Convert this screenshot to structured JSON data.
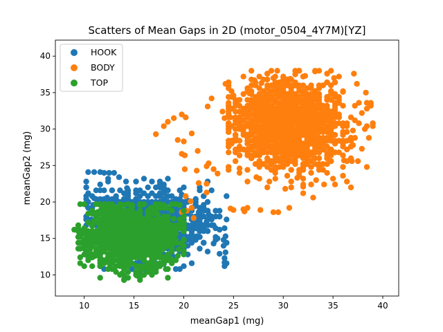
{
  "chart_data": {
    "type": "scatter",
    "title": "Scatters of Mean Gaps in 2D (motor_0504_4Y7M)[YZ]",
    "xlabel": "meanGap1 (mg)",
    "ylabel": "meanGap2 (mg)",
    "xlim": [
      7.1,
      41.6
    ],
    "ylim": [
      7.1,
      42.2
    ],
    "xticks": [
      10,
      15,
      20,
      25,
      30,
      35,
      40
    ],
    "yticks": [
      10,
      15,
      20,
      25,
      30,
      35,
      40
    ],
    "grid": false,
    "legend_position": "upper left",
    "series": [
      {
        "name": "HOOK",
        "color": "#1f77b4",
        "cluster": {
          "center": [
            16.5,
            17.0
          ],
          "spread": [
            3.0,
            2.5
          ],
          "range_x": [
            10.2,
            24.3
          ],
          "range_y": [
            10.2,
            24.3
          ],
          "count": 900
        },
        "points": [
          [
            10.4,
            24.1
          ],
          [
            11.0,
            24.1
          ],
          [
            11.6,
            24.1
          ],
          [
            12.0,
            24.0
          ],
          [
            12.5,
            24.0
          ],
          [
            13.0,
            24.0
          ],
          [
            13.5,
            23.4
          ],
          [
            14.2,
            22.8
          ],
          [
            14.3,
            21.9
          ],
          [
            11.0,
            20.5
          ],
          [
            11.6,
            20.3
          ],
          [
            10.9,
            19.6
          ],
          [
            10.7,
            18.6
          ],
          [
            10.7,
            17.6
          ],
          [
            12.3,
            20.6
          ],
          [
            19.8,
            21.0
          ],
          [
            20.4,
            20.2
          ],
          [
            21.1,
            19.4
          ],
          [
            21.5,
            18.6
          ],
          [
            22.5,
            18.3
          ],
          [
            22.3,
            17.3
          ],
          [
            23.0,
            16.8
          ],
          [
            23.6,
            16.2
          ],
          [
            24.1,
            16.4
          ],
          [
            24.2,
            15.3
          ],
          [
            24.3,
            14.4
          ],
          [
            24.0,
            14.0
          ],
          [
            24.2,
            13.1
          ],
          [
            24.1,
            12.3
          ],
          [
            24.1,
            11.7
          ],
          [
            24.1,
            11.2
          ],
          [
            23.6,
            12.9
          ],
          [
            23.4,
            15.0
          ],
          [
            23.0,
            14.3
          ],
          [
            21.3,
            15.3
          ],
          [
            20.1,
            14.0
          ],
          [
            18.0,
            11.5
          ],
          [
            16.2,
            10.6
          ],
          [
            15.5,
            10.2
          ],
          [
            21.8,
            16.6
          ]
        ]
      },
      {
        "name": "BODY",
        "color": "#ff7f0e",
        "cluster": {
          "center": [
            30.5,
            30.5
          ],
          "spread": [
            2.8,
            2.9
          ],
          "range_x": [
            24.5,
            39.0
          ],
          "range_y": [
            22.0,
            38.0
          ],
          "count": 1500
        },
        "points": [
          [
            17.2,
            29.3
          ],
          [
            18.0,
            30.4
          ],
          [
            18.4,
            31.0
          ],
          [
            19.0,
            31.5
          ],
          [
            19.8,
            32.0
          ],
          [
            20.2,
            31.6
          ],
          [
            19.4,
            28.5
          ],
          [
            20.0,
            28.3
          ],
          [
            20.8,
            29.4
          ],
          [
            19.8,
            26.6
          ],
          [
            20.1,
            26.4
          ],
          [
            20.1,
            24.5
          ],
          [
            21.4,
            27.0
          ],
          [
            21.3,
            24.3
          ],
          [
            21.5,
            22.6
          ],
          [
            22.3,
            22.5
          ],
          [
            22.3,
            21.3
          ],
          [
            20.2,
            20.8
          ],
          [
            20.7,
            20.1
          ],
          [
            20.8,
            19.2
          ],
          [
            19.8,
            18.6
          ],
          [
            20.3,
            18.8
          ],
          [
            21.0,
            17.8
          ],
          [
            24.7,
            19.1
          ],
          [
            25.0,
            18.9
          ],
          [
            23.4,
            23.9
          ],
          [
            23.0,
            24.5
          ],
          [
            22.3,
            24.9
          ],
          [
            22.5,
            25.3
          ],
          [
            22.4,
            33.1
          ],
          [
            22.8,
            34.2
          ],
          [
            23.9,
            32.4
          ],
          [
            24.1,
            31.5
          ],
          [
            26.0,
            19.0
          ],
          [
            26.1,
            18.7
          ],
          [
            26.4,
            19.2
          ],
          [
            27.7,
            18.9
          ],
          [
            29.0,
            18.6
          ],
          [
            29.5,
            18.6
          ],
          [
            30.6,
            19.2
          ],
          [
            32.0,
            21.2
          ],
          [
            32.0,
            22.1
          ],
          [
            33.0,
            20.6
          ],
          [
            34.1,
            22.4
          ],
          [
            35.0,
            23.2
          ],
          [
            34.4,
            24.0
          ],
          [
            36.0,
            23.6
          ],
          [
            36.9,
            25.6
          ],
          [
            37.5,
            25.6
          ],
          [
            37.9,
            27.3
          ],
          [
            38.6,
            28.8
          ],
          [
            38.2,
            30.0
          ],
          [
            37.9,
            32.2
          ],
          [
            38.8,
            33.4
          ],
          [
            38.3,
            35.0
          ],
          [
            37.4,
            36.2
          ],
          [
            37.1,
            37.6
          ],
          [
            35.1,
            37.0
          ],
          [
            33.2,
            37.9
          ],
          [
            32.2,
            37.3
          ],
          [
            31.2,
            37.5
          ],
          [
            30.7,
            36.9
          ],
          [
            29.0,
            37.0
          ],
          [
            27.8,
            36.3
          ],
          [
            27.1,
            36.7
          ],
          [
            26.6,
            34.9
          ],
          [
            25.0,
            34.6
          ],
          [
            25.3,
            33.4
          ],
          [
            24.7,
            31.6
          ],
          [
            24.5,
            29.6
          ],
          [
            25.6,
            24.6
          ],
          [
            27.6,
            23.2
          ],
          [
            28.6,
            22.8
          ],
          [
            31.4,
            23.3
          ],
          [
            36.1,
            25.7
          ],
          [
            37.0,
            27.8
          ],
          [
            37.0,
            29.8
          ],
          [
            35.6,
            33.6
          ],
          [
            36.0,
            35.1
          ],
          [
            29.4,
            38.0
          ],
          [
            28.4,
            37.6
          ],
          [
            24.2,
            36.2
          ],
          [
            30.2,
            21.8
          ],
          [
            33.3,
            23.0
          ],
          [
            27.3,
            23.4
          ]
        ]
      },
      {
        "name": "TOP",
        "color": "#2ca02c",
        "cluster": {
          "center": [
            14.5,
            15.2
          ],
          "spread": [
            2.3,
            2.2
          ],
          "range_x": [
            9.4,
            20.0
          ],
          "range_y": [
            9.3,
            19.7
          ],
          "count": 1100
        },
        "points": [
          [
            9.0,
            16.2
          ],
          [
            9.5,
            15.8
          ],
          [
            10.0,
            16.2
          ],
          [
            10.2,
            15.5
          ],
          [
            10.0,
            14.6
          ],
          [
            10.6,
            13.5
          ],
          [
            11.1,
            12.6
          ],
          [
            12.3,
            11.8
          ],
          [
            12.6,
            11.4
          ],
          [
            13.0,
            10.8
          ],
          [
            13.8,
            10.2
          ],
          [
            14.0,
            9.4
          ],
          [
            15.3,
            9.9
          ],
          [
            15.9,
            10.8
          ],
          [
            16.3,
            11.0
          ],
          [
            17.2,
            11.5
          ],
          [
            18.0,
            12.0
          ],
          [
            18.2,
            10.8
          ],
          [
            18.6,
            12.3
          ],
          [
            19.4,
            12.6
          ],
          [
            19.5,
            13.5
          ],
          [
            19.7,
            14.3
          ],
          [
            19.2,
            15.7
          ],
          [
            19.5,
            16.8
          ],
          [
            19.9,
            17.2
          ],
          [
            19.0,
            17.7
          ],
          [
            18.4,
            17.8
          ],
          [
            17.4,
            18.3
          ],
          [
            17.1,
            18.9
          ],
          [
            16.7,
            19.2
          ],
          [
            15.8,
            19.6
          ],
          [
            14.7,
            19.5
          ],
          [
            13.6,
            19.3
          ],
          [
            12.4,
            19.2
          ],
          [
            11.8,
            19.0
          ],
          [
            11.3,
            18.6
          ],
          [
            11.0,
            17.4
          ],
          [
            10.8,
            16.7
          ],
          [
            12.6,
            12.8
          ],
          [
            16.8,
            12.6
          ]
        ]
      }
    ]
  }
}
